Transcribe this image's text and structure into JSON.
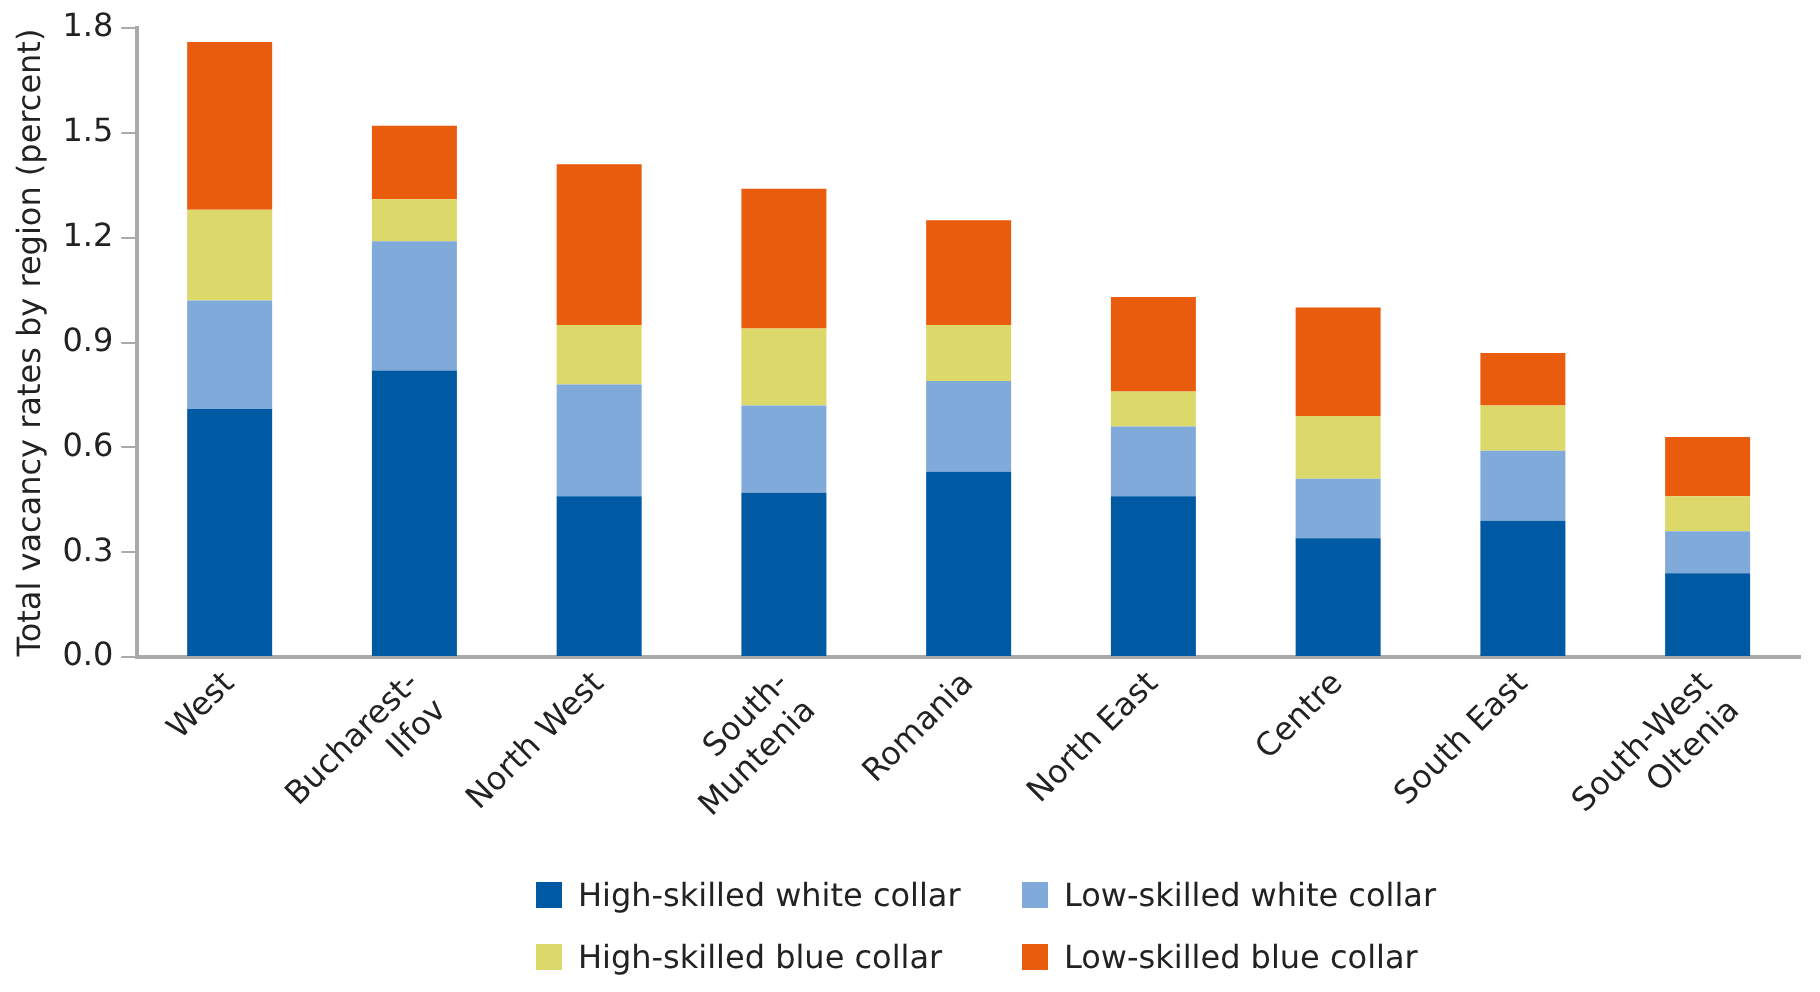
{
  "chart_data": {
    "type": "bar",
    "stacked": true,
    "ylabel": "Total vacancy rates by region (percent)",
    "categories": [
      "West",
      "Bucharest-\nIlfov",
      "North West",
      "South-\nMuntenia",
      "Romania",
      "North East",
      "Centre",
      "South East",
      "South-West\nOltenia"
    ],
    "series": [
      {
        "name": "High-skilled white collar",
        "color": "#0059a3",
        "values": [
          0.71,
          0.82,
          0.46,
          0.47,
          0.53,
          0.46,
          0.34,
          0.39,
          0.24
        ]
      },
      {
        "name": "Low-skilled white collar",
        "color": "#7faad9",
        "values": [
          0.31,
          0.37,
          0.32,
          0.25,
          0.26,
          0.2,
          0.17,
          0.2,
          0.12
        ]
      },
      {
        "name": "High-skilled blue collar",
        "color": "#dcd96a",
        "values": [
          0.26,
          0.12,
          0.17,
          0.22,
          0.16,
          0.1,
          0.18,
          0.13,
          0.1
        ]
      },
      {
        "name": "Low-skilled blue collar",
        "color": "#e95b0d",
        "values": [
          0.48,
          0.21,
          0.46,
          0.4,
          0.3,
          0.27,
          0.31,
          0.15,
          0.17
        ]
      }
    ],
    "ylim": [
      0,
      1.8
    ],
    "yticks": [
      {
        "value": 0,
        "label": "0.0"
      },
      0.3,
      0.6,
      0.9,
      1.2,
      1.5,
      1.8
    ],
    "grid": false,
    "legend": "bottom"
  }
}
